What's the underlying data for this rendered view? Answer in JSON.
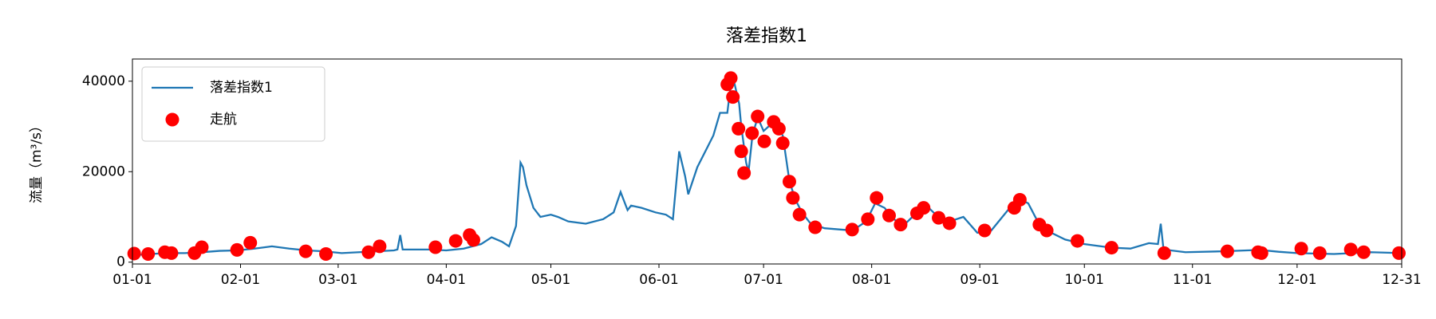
{
  "chart_data": {
    "type": "line",
    "title": "落差指数1",
    "y_label": "流量（m³/s）",
    "xlim": [
      0,
      364
    ],
    "xticks": [
      {
        "value": 0,
        "label": "01-01"
      },
      {
        "value": 31,
        "label": "02-01"
      },
      {
        "value": 59,
        "label": "03-01"
      },
      {
        "value": 90,
        "label": "04-01"
      },
      {
        "value": 120,
        "label": "05-01"
      },
      {
        "value": 151,
        "label": "06-01"
      },
      {
        "value": 181,
        "label": "07-01"
      },
      {
        "value": 212,
        "label": "08-01"
      },
      {
        "value": 243,
        "label": "09-01"
      },
      {
        "value": 273,
        "label": "10-01"
      },
      {
        "value": 304,
        "label": "11-01"
      },
      {
        "value": 334,
        "label": "12-01"
      },
      {
        "value": 364,
        "label": "12-31"
      }
    ],
    "ylim": [
      -400,
      44900
    ],
    "yticks": [
      0,
      20000,
      40000
    ],
    "legend": "upper left",
    "series": [
      {
        "name": "落差指数1",
        "type": "line",
        "color": "#1f77b4",
        "x": [
          0,
          5,
          10,
          15,
          20,
          25,
          30,
          35,
          40,
          45,
          50,
          55,
          60,
          65,
          70,
          75,
          76,
          76.8,
          77.5,
          80,
          85,
          90,
          95,
          100,
          103,
          106,
          108,
          110,
          111.3,
          112,
          113,
          115,
          117,
          120,
          122,
          125,
          130,
          135,
          138,
          140,
          142,
          143,
          146,
          150,
          153,
          155,
          156.8,
          158.5,
          159.4,
          162,
          166.6,
          168.5,
          170.6,
          171.4,
          172.5,
          174,
          174.6,
          176,
          176.7,
          177.8,
          179.3,
          181,
          183.9,
          186.5,
          188.4,
          190,
          192,
          194.5,
          198.5,
          206.5,
          210.4,
          213,
          215.7,
          218.4,
          221,
          225,
          227.7,
          230.4,
          234.3,
          238.3,
          242.3,
          246.3,
          251.6,
          254.3,
          256.9,
          259.6,
          262.2,
          267.5,
          272.9,
          280.8,
          286.2,
          291.5,
          294.1,
          294.9,
          295.7,
          302,
          312.7,
          323.3,
          328.7,
          334,
          344.6,
          355.2,
          364
        ],
        "values": [
          1500,
          1800,
          2000,
          2000,
          2200,
          2500,
          2600,
          3000,
          3500,
          3000,
          2600,
          2400,
          2000,
          2200,
          2400,
          2600,
          2800,
          6000,
          2800,
          2800,
          2800,
          2600,
          3000,
          4000,
          5500,
          4500,
          3500,
          8000,
          22000,
          21000,
          17000,
          12000,
          10000,
          10500,
          10000,
          9000,
          8500,
          9500,
          11000,
          15500,
          11500,
          12500,
          12000,
          11000,
          10500,
          9500,
          24500,
          19000,
          15000,
          21000,
          28000,
          33000,
          33000,
          38000,
          40000,
          35000,
          30000,
          22000,
          20000,
          28000,
          32000,
          29000,
          31000,
          28000,
          18000,
          14000,
          11000,
          8500,
          7500,
          7000,
          9000,
          13000,
          12000,
          9500,
          8000,
          11000,
          12500,
          10500,
          9000,
          10000,
          6500,
          7000,
          12000,
          14000,
          13000,
          9000,
          7000,
          5000,
          4000,
          3200,
          3000,
          4200,
          4000,
          8500,
          2800,
          2200,
          2400,
          2700,
          2300,
          2000,
          1800,
          2200,
          2000
        ]
      },
      {
        "name": "走航",
        "type": "scatter",
        "color": "#ff0000",
        "x": [
          0.5,
          4.5,
          9.3,
          11.2,
          17.8,
          19.9,
          30,
          33.8,
          49.7,
          55.5,
          67.7,
          70.9,
          86.9,
          92.7,
          96.7,
          97.8,
          170.6,
          171.6,
          172.2,
          173.8,
          174.6,
          175.4,
          177.7,
          179.3,
          181.2,
          183.9,
          185.4,
          186.5,
          188.4,
          189.4,
          191.3,
          195.8,
          206.4,
          210.9,
          213.4,
          217,
          220.3,
          225,
          226.9,
          231.2,
          234.3,
          244.4,
          252.9,
          254.5,
          260.1,
          262.2,
          271,
          280.8,
          295.9,
          314,
          322.8,
          323.8,
          335.2,
          340.5,
          349.4,
          353.1,
          363.2
        ],
        "values": [
          1900,
          1800,
          2200,
          2000,
          2000,
          3300,
          2700,
          4300,
          2400,
          1800,
          2200,
          3500,
          3300,
          4700,
          6000,
          4900,
          39300,
          40700,
          36500,
          29500,
          24500,
          19700,
          28500,
          32200,
          26700,
          31000,
          29500,
          26300,
          17800,
          14200,
          10500,
          7700,
          7200,
          9500,
          14200,
          10300,
          8300,
          10800,
          12000,
          9800,
          8600,
          7000,
          12000,
          13800,
          8300,
          7000,
          4700,
          3200,
          2000,
          2400,
          2200,
          2000,
          3000,
          2000,
          2800,
          2200,
          2000
        ]
      }
    ]
  }
}
